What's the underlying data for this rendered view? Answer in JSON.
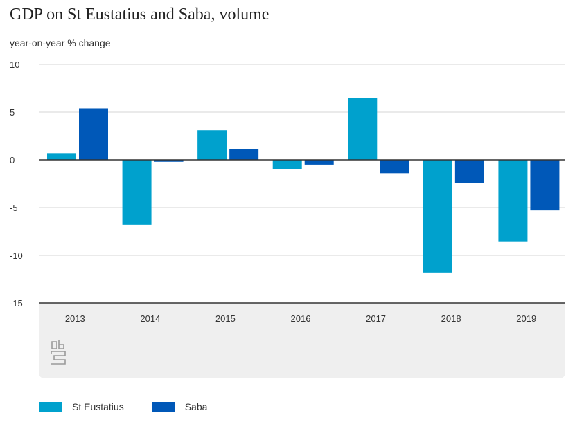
{
  "header": {
    "title": "GDP on St Eustatius and Saba, volume",
    "subtitle": "year-on-year % change"
  },
  "colors": {
    "st_eustatius": "#00a1cd",
    "saba": "#0058b8",
    "grid": "#d6d6d6",
    "axis": "#333333",
    "panel": "#efefef"
  },
  "legend": {
    "items": [
      {
        "label": "St Eustatius",
        "color": "#00a1cd"
      },
      {
        "label": "Saba",
        "color": "#0058b8"
      }
    ]
  },
  "chart_data": {
    "type": "bar",
    "title": "GDP on St Eustatius and Saba, volume",
    "ylabel": "year-on-year % change",
    "xlabel": "",
    "categories": [
      "2013",
      "2014",
      "2015",
      "2016",
      "2017",
      "2018",
      "2019"
    ],
    "series": [
      {
        "name": "St Eustatius",
        "color": "#00a1cd",
        "values": [
          0.7,
          -6.8,
          3.1,
          -1.0,
          6.5,
          -11.8,
          -8.6
        ]
      },
      {
        "name": "Saba",
        "color": "#0058b8",
        "values": [
          5.4,
          -0.2,
          1.1,
          -0.5,
          -1.4,
          -2.4,
          -5.3
        ]
      }
    ],
    "ylim": [
      -15,
      10
    ],
    "yticks": [
      10,
      5,
      0,
      -5,
      -10,
      -15
    ],
    "grid": true,
    "legend_position": "bottom-left"
  }
}
